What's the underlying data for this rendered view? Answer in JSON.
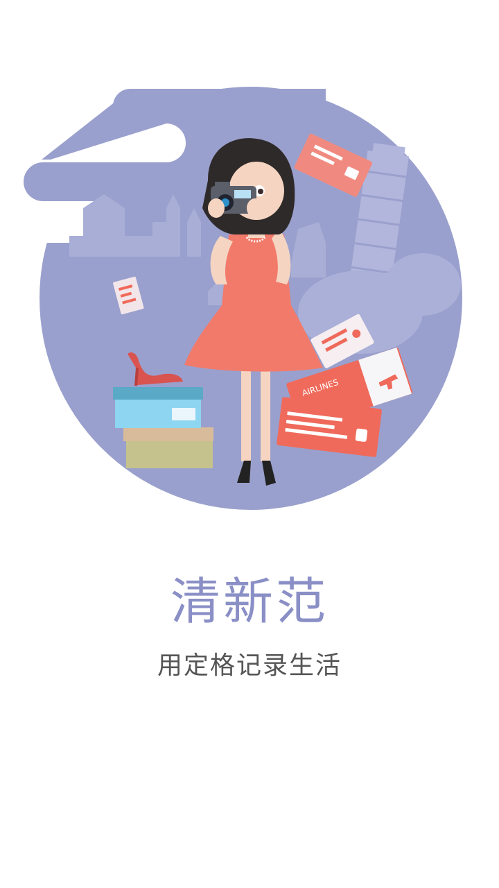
{
  "onboarding": {
    "title": "清新范",
    "subtitle": "用定格记录生活",
    "illustration": "woman-with-camera-travel-illustration"
  },
  "colors": {
    "circle": "#9aa0cd",
    "title": "#8a8fc6",
    "subtitle": "#555555",
    "dress": "#f27a6a",
    "ticket": "#ef6a5b"
  },
  "ticket_text": "AIRLINES"
}
